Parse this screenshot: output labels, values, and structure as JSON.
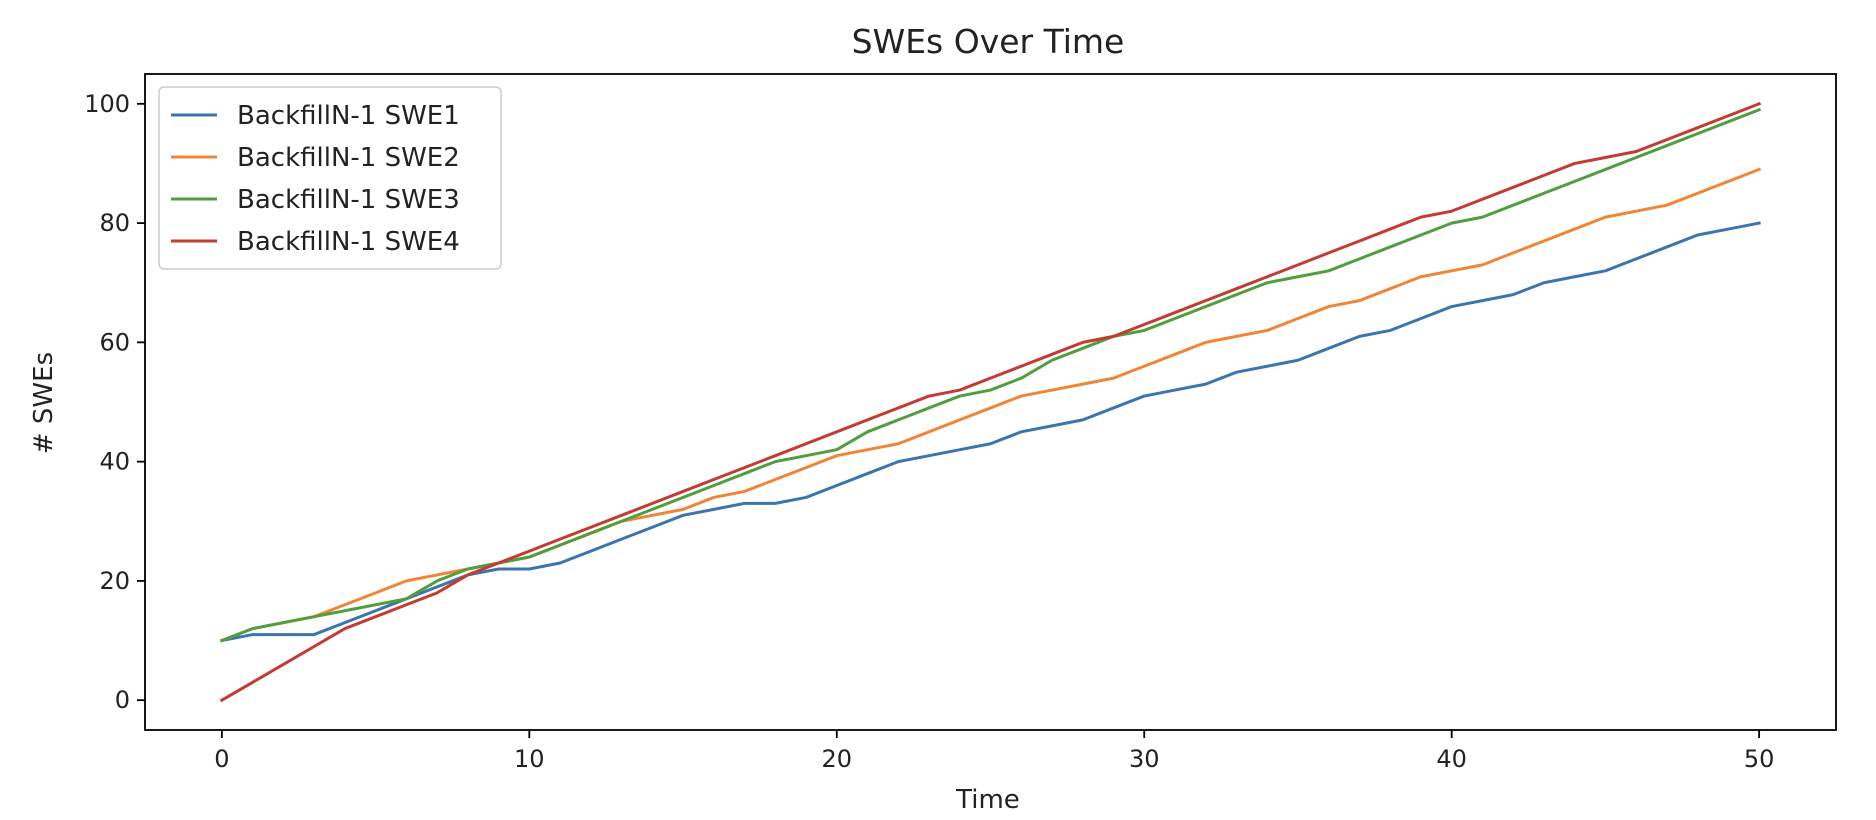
{
  "chart_data": {
    "type": "line",
    "title": "SWEs Over Time",
    "xlabel": "Time",
    "ylabel": "# SWEs",
    "xlim": [
      -2.5,
      52.5
    ],
    "ylim": [
      -5,
      105
    ],
    "xticks": [
      0,
      10,
      20,
      30,
      40,
      50
    ],
    "yticks": [
      0,
      20,
      40,
      60,
      80,
      100
    ],
    "grid": false,
    "legend_position": "top-left",
    "x": [
      0,
      1,
      2,
      3,
      4,
      5,
      6,
      7,
      8,
      9,
      10,
      11,
      12,
      13,
      14,
      15,
      16,
      17,
      18,
      19,
      20,
      21,
      22,
      23,
      24,
      25,
      26,
      27,
      28,
      29,
      30,
      31,
      32,
      33,
      34,
      35,
      36,
      37,
      38,
      39,
      40,
      41,
      42,
      43,
      44,
      45,
      46,
      47,
      48,
      49,
      50
    ],
    "series": [
      {
        "name": "BackfillN-1 SWE1",
        "color": "#3b75af",
        "values": [
          10,
          11,
          11,
          11,
          13,
          15,
          17,
          19,
          21,
          22,
          22,
          23,
          25,
          27,
          29,
          31,
          32,
          33,
          33,
          34,
          36,
          38,
          40,
          41,
          42,
          43,
          45,
          46,
          47,
          49,
          51,
          52,
          53,
          55,
          56,
          57,
          59,
          61,
          62,
          64,
          66,
          67,
          68,
          70,
          71,
          72,
          74,
          76,
          78,
          79,
          80
        ]
      },
      {
        "name": "BackfillN-1 SWE2",
        "color": "#ef8636",
        "values": [
          10,
          12,
          13,
          14,
          16,
          18,
          20,
          21,
          22,
          23,
          24,
          26,
          28,
          30,
          31,
          32,
          34,
          35,
          37,
          39,
          41,
          42,
          43,
          45,
          47,
          49,
          51,
          52,
          53,
          54,
          56,
          58,
          60,
          61,
          62,
          64,
          66,
          67,
          69,
          71,
          72,
          73,
          75,
          77,
          79,
          81,
          82,
          83,
          85,
          87,
          89
        ]
      },
      {
        "name": "BackfillN-1 SWE3",
        "color": "#519e3e",
        "values": [
          10,
          12,
          13,
          14,
          15,
          16,
          17,
          20,
          22,
          23,
          24,
          26,
          28,
          30,
          32,
          34,
          36,
          38,
          40,
          41,
          42,
          45,
          47,
          49,
          51,
          52,
          54,
          57,
          59,
          61,
          62,
          64,
          66,
          68,
          70,
          71,
          72,
          74,
          76,
          78,
          80,
          81,
          83,
          85,
          87,
          89,
          91,
          93,
          95,
          97,
          99
        ]
      },
      {
        "name": "BackfillN-1 SWE4",
        "color": "#c53a32",
        "values": [
          0,
          3,
          6,
          9,
          12,
          14,
          16,
          18,
          21,
          23,
          25,
          27,
          29,
          31,
          33,
          35,
          37,
          39,
          41,
          43,
          45,
          47,
          49,
          51,
          52,
          54,
          56,
          58,
          60,
          61,
          63,
          65,
          67,
          69,
          71,
          73,
          75,
          77,
          79,
          81,
          82,
          84,
          86,
          88,
          90,
          91,
          92,
          94,
          96,
          98,
          100
        ]
      }
    ]
  }
}
